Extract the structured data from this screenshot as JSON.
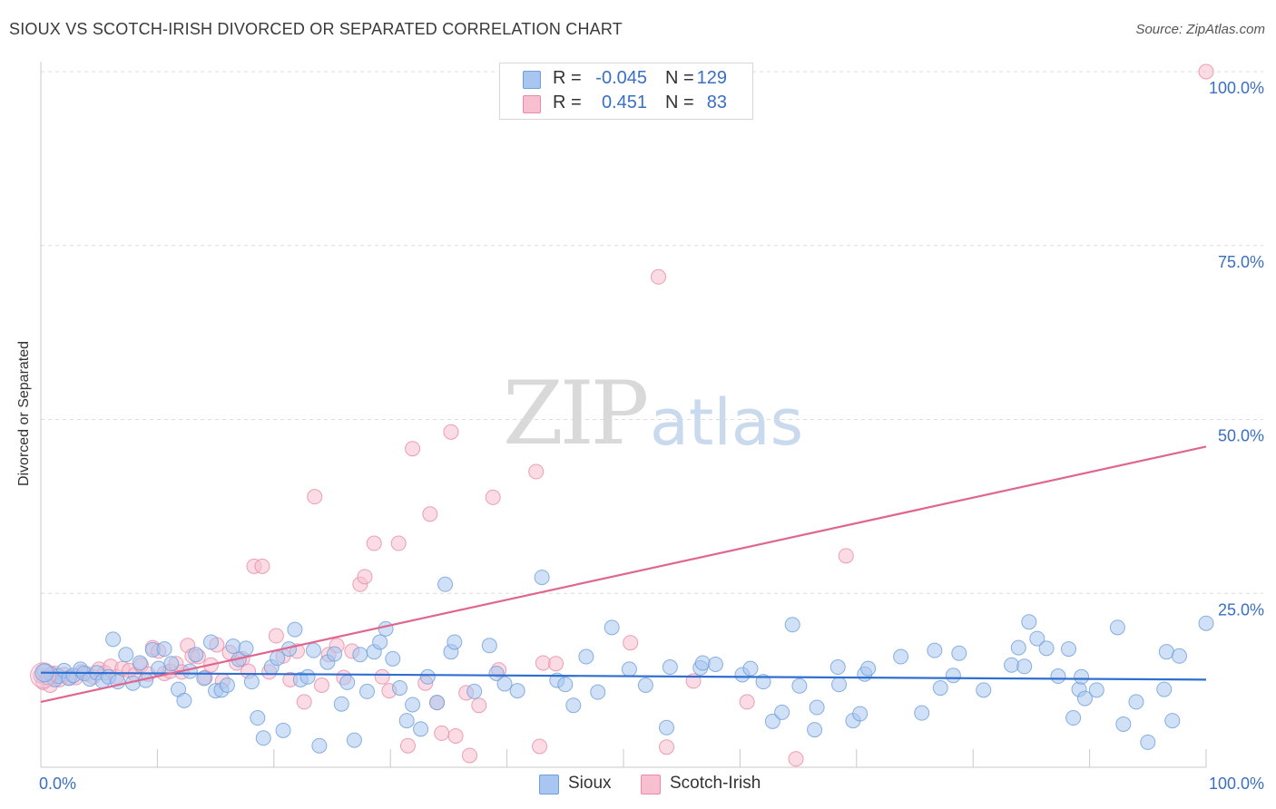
{
  "title": "SIOUX VS SCOTCH-IRISH DIVORCED OR SEPARATED CORRELATION CHART",
  "source": "Source: ZipAtlas.com",
  "watermark": {
    "part1": "ZIP",
    "part2": "atlas"
  },
  "legend_top": [
    {
      "r_label": "R = ",
      "r_value": "-0.045",
      "n_label": "N = ",
      "n_value": "129",
      "color": "#a8c6f0",
      "border": "#6f9fd8"
    },
    {
      "r_label": "R = ",
      "r_value": "0.451",
      "n_label": "N = ",
      "n_value": "83",
      "color": "#f7bfd0",
      "border": "#e88aa8"
    }
  ],
  "legend_bottom": [
    {
      "label": "Sioux",
      "color": "#a8c6f0",
      "border": "#6f9fd8"
    },
    {
      "label": "Scotch-Irish",
      "color": "#f7bfd0",
      "border": "#e88aa8"
    }
  ],
  "chart_data": {
    "type": "scatter",
    "title": "SIOUX VS SCOTCH-IRISH DIVORCED OR SEPARATED CORRELATION CHART",
    "xlabel": "",
    "ylabel": "Divorced or Separated",
    "xlim": [
      0,
      100
    ],
    "ylim": [
      0,
      100
    ],
    "x_tick_labels": [
      "0.0%",
      "100.0%"
    ],
    "y_tick_labels": [
      "25.0%",
      "50.0%",
      "75.0%",
      "100.0%"
    ],
    "y_ticks": [
      25,
      50,
      75,
      100
    ],
    "grid": "horizontal dashed",
    "series": [
      {
        "name": "Sioux",
        "color": "#6f9fd8",
        "fill": "#a8c6f0",
        "trend": {
          "x": [
            0,
            100
          ],
          "y": [
            13.6,
            12.6
          ],
          "color": "#2f6fd0"
        },
        "points": [
          [
            0.3,
            13.8
          ],
          [
            0.6,
            12.9
          ],
          [
            0.9,
            13.4
          ],
          [
            1.2,
            12.6
          ],
          [
            1.5,
            13.1
          ],
          [
            2.0,
            13.9
          ],
          [
            2.4,
            12.8
          ],
          [
            2.8,
            13.2
          ],
          [
            3.4,
            14.1
          ],
          [
            3.7,
            13.5
          ],
          [
            4.2,
            12.7
          ],
          [
            4.8,
            13.6
          ],
          [
            5.3,
            12.4
          ],
          [
            5.8,
            13.0
          ],
          [
            6.2,
            18.4
          ],
          [
            6.6,
            12.3
          ],
          [
            7.3,
            16.2
          ],
          [
            7.9,
            12.1
          ],
          [
            8.5,
            15.0
          ],
          [
            9.0,
            12.5
          ],
          [
            9.6,
            16.9
          ],
          [
            10.1,
            14.2
          ],
          [
            10.6,
            17.0
          ],
          [
            11.2,
            14.9
          ],
          [
            11.8,
            11.2
          ],
          [
            12.3,
            9.6
          ],
          [
            12.8,
            13.8
          ],
          [
            13.3,
            16.2
          ],
          [
            14.0,
            12.8
          ],
          [
            14.6,
            18.0
          ],
          [
            15.0,
            11.0
          ],
          [
            15.5,
            11.1
          ],
          [
            16.0,
            11.8
          ],
          [
            16.5,
            17.4
          ],
          [
            17.0,
            15.5
          ],
          [
            17.6,
            17.1
          ],
          [
            18.1,
            12.3
          ],
          [
            18.6,
            7.1
          ],
          [
            19.1,
            4.2
          ],
          [
            19.8,
            14.4
          ],
          [
            20.3,
            15.7
          ],
          [
            20.8,
            5.3
          ],
          [
            21.3,
            17.0
          ],
          [
            21.8,
            19.8
          ],
          [
            22.3,
            12.6
          ],
          [
            22.9,
            13.0
          ],
          [
            23.4,
            16.8
          ],
          [
            23.9,
            3.1
          ],
          [
            24.6,
            15.1
          ],
          [
            25.2,
            16.3
          ],
          [
            25.8,
            9.1
          ],
          [
            26.3,
            12.2
          ],
          [
            26.9,
            3.9
          ],
          [
            27.4,
            16.2
          ],
          [
            28.0,
            10.9
          ],
          [
            28.6,
            16.6
          ],
          [
            29.1,
            18.0
          ],
          [
            29.6,
            19.9
          ],
          [
            30.2,
            15.6
          ],
          [
            30.8,
            11.4
          ],
          [
            31.4,
            6.7
          ],
          [
            31.9,
            9.0
          ],
          [
            32.6,
            5.5
          ],
          [
            33.2,
            13.0
          ],
          [
            34.0,
            9.3
          ],
          [
            34.7,
            26.3
          ],
          [
            35.2,
            16.6
          ],
          [
            35.5,
            18.0
          ],
          [
            37.2,
            10.9
          ],
          [
            38.5,
            17.5
          ],
          [
            39.1,
            13.5
          ],
          [
            39.8,
            12.0
          ],
          [
            40.9,
            11.0
          ],
          [
            43.0,
            27.3
          ],
          [
            44.3,
            12.5
          ],
          [
            45.0,
            11.9
          ],
          [
            45.7,
            8.9
          ],
          [
            46.8,
            15.9
          ],
          [
            47.8,
            10.8
          ],
          [
            49.0,
            20.1
          ],
          [
            50.5,
            14.1
          ],
          [
            51.9,
            11.8
          ],
          [
            53.7,
            5.7
          ],
          [
            54.0,
            14.4
          ],
          [
            56.6,
            14.3
          ],
          [
            56.8,
            15.0
          ],
          [
            57.9,
            14.8
          ],
          [
            60.2,
            13.3
          ],
          [
            60.9,
            14.2
          ],
          [
            62.0,
            12.3
          ],
          [
            62.8,
            6.6
          ],
          [
            63.6,
            7.9
          ],
          [
            64.5,
            20.5
          ],
          [
            65.1,
            11.7
          ],
          [
            66.4,
            5.4
          ],
          [
            66.6,
            8.6
          ],
          [
            68.4,
            14.4
          ],
          [
            68.5,
            11.9
          ],
          [
            69.7,
            6.7
          ],
          [
            70.3,
            7.7
          ],
          [
            70.7,
            13.4
          ],
          [
            71.0,
            14.2
          ],
          [
            73.8,
            15.9
          ],
          [
            75.6,
            7.8
          ],
          [
            76.7,
            16.8
          ],
          [
            77.2,
            11.4
          ],
          [
            78.3,
            13.2
          ],
          [
            78.8,
            16.4
          ],
          [
            80.9,
            11.1
          ],
          [
            83.3,
            14.7
          ],
          [
            83.9,
            17.2
          ],
          [
            84.4,
            14.5
          ],
          [
            84.8,
            20.9
          ],
          [
            85.5,
            18.5
          ],
          [
            86.3,
            17.1
          ],
          [
            87.3,
            13.1
          ],
          [
            88.2,
            17.0
          ],
          [
            88.6,
            7.1
          ],
          [
            89.1,
            11.2
          ],
          [
            89.3,
            13.0
          ],
          [
            89.6,
            9.9
          ],
          [
            90.6,
            11.1
          ],
          [
            92.4,
            20.1
          ],
          [
            92.9,
            6.2
          ],
          [
            94.0,
            9.4
          ],
          [
            95.0,
            3.6
          ],
          [
            96.4,
            11.2
          ],
          [
            96.6,
            16.6
          ],
          [
            97.1,
            6.7
          ],
          [
            97.7,
            16.0
          ],
          [
            100.0,
            20.7
          ]
        ]
      },
      {
        "name": "Scotch-Irish",
        "color": "#e88aa8",
        "fill": "#f7bfd0",
        "trend": {
          "x": [
            0,
            100
          ],
          "y": [
            9.4,
            46.1
          ],
          "color": "#e0668f"
        },
        "points": [
          [
            0.2,
            12.2
          ],
          [
            0.5,
            13.0
          ],
          [
            0.8,
            11.8
          ],
          [
            1.2,
            13.5
          ],
          [
            1.6,
            12.6
          ],
          [
            2.0,
            13.3
          ],
          [
            2.5,
            12.9
          ],
          [
            3.0,
            12.9
          ],
          [
            3.5,
            13.7
          ],
          [
            4.0,
            13.4
          ],
          [
            4.5,
            13.0
          ],
          [
            5.0,
            14.1
          ],
          [
            5.5,
            13.6
          ],
          [
            6.0,
            14.5
          ],
          [
            6.5,
            13.0
          ],
          [
            7.0,
            14.2
          ],
          [
            7.6,
            13.9
          ],
          [
            8.1,
            13.3
          ],
          [
            8.6,
            14.7
          ],
          [
            9.2,
            13.4
          ],
          [
            9.6,
            17.2
          ],
          [
            10.1,
            16.7
          ],
          [
            10.6,
            13.5
          ],
          [
            11.1,
            13.8
          ],
          [
            11.6,
            14.9
          ],
          [
            12.1,
            13.7
          ],
          [
            12.6,
            17.5
          ],
          [
            13.0,
            16.0
          ],
          [
            13.5,
            15.9
          ],
          [
            14.1,
            12.9
          ],
          [
            14.6,
            14.7
          ],
          [
            15.1,
            17.6
          ],
          [
            15.6,
            12.4
          ],
          [
            16.2,
            16.5
          ],
          [
            16.8,
            15.0
          ],
          [
            17.3,
            15.6
          ],
          [
            17.8,
            13.8
          ],
          [
            18.3,
            28.9
          ],
          [
            19.0,
            28.9
          ],
          [
            19.6,
            13.7
          ],
          [
            20.2,
            18.9
          ],
          [
            20.8,
            16.0
          ],
          [
            21.4,
            12.6
          ],
          [
            22.0,
            16.7
          ],
          [
            22.6,
            9.4
          ],
          [
            23.5,
            38.9
          ],
          [
            24.1,
            11.8
          ],
          [
            24.7,
            16.2
          ],
          [
            25.4,
            17.5
          ],
          [
            26.0,
            12.9
          ],
          [
            26.7,
            16.7
          ],
          [
            27.4,
            26.3
          ],
          [
            27.8,
            27.4
          ],
          [
            28.6,
            32.2
          ],
          [
            29.3,
            13.0
          ],
          [
            29.9,
            11.0
          ],
          [
            30.7,
            32.2
          ],
          [
            31.5,
            3.1
          ],
          [
            31.9,
            45.8
          ],
          [
            33.0,
            12.1
          ],
          [
            33.4,
            36.4
          ],
          [
            34.0,
            9.3
          ],
          [
            34.4,
            4.9
          ],
          [
            35.2,
            48.2
          ],
          [
            35.6,
            4.5
          ],
          [
            36.5,
            10.7
          ],
          [
            36.8,
            1.7
          ],
          [
            37.6,
            8.9
          ],
          [
            38.8,
            38.8
          ],
          [
            39.3,
            14.0
          ],
          [
            42.5,
            42.5
          ],
          [
            42.8,
            3.0
          ],
          [
            43.1,
            15.0
          ],
          [
            44.2,
            14.9
          ],
          [
            50.6,
            17.9
          ],
          [
            53.0,
            70.5
          ],
          [
            53.7,
            2.9
          ],
          [
            56.0,
            12.4
          ],
          [
            60.6,
            9.4
          ],
          [
            64.8,
            1.2
          ],
          [
            69.1,
            30.4
          ],
          [
            100.0,
            100.0
          ],
          [
            0.0,
            13.2
          ]
        ]
      }
    ]
  }
}
